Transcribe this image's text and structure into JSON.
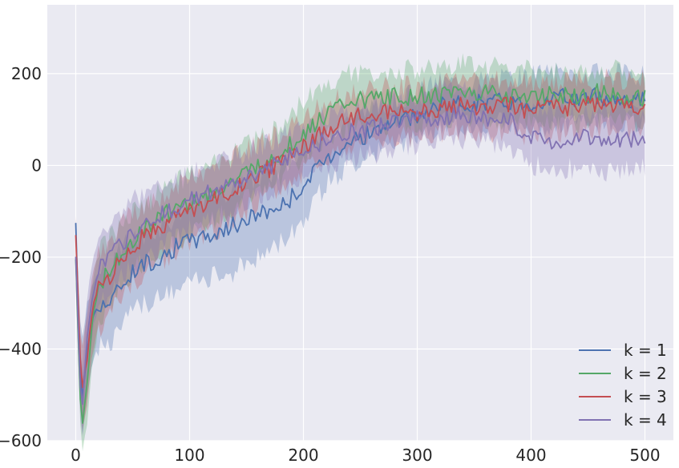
{
  "chart_data": {
    "type": "line",
    "title": "",
    "xlabel": "",
    "ylabel": "",
    "xlim": [
      -25,
      525
    ],
    "ylim": [
      -600,
      350
    ],
    "x_ticks": [
      0,
      100,
      200,
      300,
      400,
      500
    ],
    "x_tick_labels": [
      "0",
      "100",
      "200",
      "300",
      "400",
      "500"
    ],
    "y_ticks": [
      -600,
      -400,
      -200,
      0,
      200
    ],
    "y_tick_labels": [
      "−600",
      "−400",
      "−200",
      "0",
      "200"
    ],
    "grid": true,
    "legend_position": "lower-right",
    "x": [
      0,
      5,
      10,
      15,
      20,
      30,
      40,
      50,
      60,
      70,
      80,
      90,
      100,
      120,
      140,
      160,
      180,
      200,
      220,
      240,
      260,
      280,
      300,
      320,
      340,
      360,
      380,
      400,
      420,
      440,
      460,
      480,
      500
    ],
    "series": [
      {
        "name": "k = 1",
        "color": "#4c72b0",
        "band_alpha": 0.3,
        "mean": [
          -130,
          -530,
          -400,
          -330,
          -300,
          -300,
          -260,
          -230,
          -215,
          -205,
          -190,
          -175,
          -165,
          -150,
          -130,
          -105,
          -90,
          -45,
          15,
          55,
          70,
          95,
          105,
          130,
          135,
          140,
          140,
          135,
          150,
          145,
          150,
          145,
          145
        ],
        "lower": [
          -190,
          -600,
          -500,
          -420,
          -400,
          -390,
          -350,
          -320,
          -305,
          -295,
          -280,
          -270,
          -255,
          -245,
          -230,
          -200,
          -165,
          -115,
          -40,
          0,
          25,
          50,
          50,
          80,
          85,
          90,
          95,
          80,
          85,
          95,
          90,
          90,
          90
        ],
        "upper": [
          -110,
          -400,
          -300,
          -260,
          -230,
          -230,
          -180,
          -160,
          -150,
          -140,
          -130,
          -100,
          -90,
          -70,
          -50,
          -25,
          -10,
          30,
          70,
          105,
          120,
          140,
          160,
          185,
          180,
          190,
          190,
          195,
          205,
          200,
          200,
          200,
          195
        ]
      },
      {
        "name": "k = 2",
        "color": "#55a868",
        "band_alpha": 0.3,
        "mean": [
          -200,
          -590,
          -470,
          -330,
          -260,
          -230,
          -190,
          -160,
          -140,
          -120,
          -105,
          -90,
          -80,
          -60,
          -35,
          0,
          25,
          70,
          110,
          140,
          145,
          150,
          150,
          155,
          160,
          160,
          155,
          150,
          155,
          150,
          160,
          150,
          145
        ],
        "lower": [
          -260,
          -640,
          -560,
          -420,
          -360,
          -310,
          -260,
          -230,
          -215,
          -195,
          -180,
          -160,
          -145,
          -120,
          -90,
          -50,
          -25,
          20,
          60,
          80,
          85,
          90,
          95,
          100,
          105,
          105,
          100,
          95,
          100,
          95,
          100,
          95,
          90
        ],
        "upper": [
          -150,
          -500,
          -380,
          -250,
          -180,
          -160,
          -130,
          -100,
          -85,
          -65,
          -50,
          -35,
          -20,
          0,
          30,
          60,
          90,
          140,
          170,
          200,
          205,
          205,
          210,
          215,
          220,
          215,
          210,
          205,
          210,
          205,
          210,
          205,
          205
        ]
      },
      {
        "name": "k = 3",
        "color": "#c44e52",
        "band_alpha": 0.3,
        "mean": [
          -150,
          -500,
          -420,
          -310,
          -270,
          -240,
          -200,
          -175,
          -155,
          -140,
          -125,
          -110,
          -95,
          -75,
          -50,
          -20,
          5,
          40,
          75,
          105,
          115,
          120,
          115,
          120,
          130,
          125,
          130,
          120,
          130,
          125,
          135,
          130,
          130
        ],
        "lower": [
          -210,
          -580,
          -520,
          -400,
          -360,
          -320,
          -280,
          -255,
          -235,
          -215,
          -200,
          -185,
          -170,
          -145,
          -115,
          -80,
          -50,
          -15,
          20,
          45,
          60,
          65,
          60,
          65,
          75,
          70,
          75,
          65,
          70,
          70,
          80,
          75,
          75
        ],
        "upper": [
          -110,
          -420,
          -320,
          -230,
          -190,
          -170,
          -130,
          -105,
          -90,
          -75,
          -60,
          -40,
          -25,
          -5,
          20,
          45,
          70,
          100,
          135,
          160,
          170,
          175,
          170,
          175,
          185,
          180,
          185,
          175,
          185,
          185,
          190,
          185,
          185
        ]
      },
      {
        "name": "k = 4",
        "color": "#8172b2",
        "band_alpha": 0.3,
        "mean": [
          -200,
          -550,
          -380,
          -280,
          -230,
          -200,
          -170,
          -145,
          -130,
          -115,
          -100,
          -90,
          -75,
          -60,
          -40,
          -15,
          5,
          35,
          55,
          70,
          80,
          90,
          100,
          105,
          110,
          105,
          100,
          60,
          55,
          60,
          55,
          55,
          60
        ],
        "lower": [
          -270,
          -620,
          -470,
          -360,
          -310,
          -280,
          -245,
          -220,
          -200,
          -185,
          -170,
          -155,
          -140,
          -120,
          -95,
          -70,
          -50,
          -25,
          0,
          15,
          25,
          35,
          45,
          50,
          55,
          50,
          45,
          0,
          -10,
          -5,
          -10,
          -15,
          -5
        ],
        "upper": [
          -140,
          -470,
          -290,
          -200,
          -160,
          -130,
          -100,
          -75,
          -60,
          -50,
          -35,
          -25,
          -15,
          0,
          20,
          40,
          60,
          90,
          110,
          125,
          135,
          145,
          155,
          160,
          165,
          160,
          155,
          125,
          120,
          120,
          115,
          115,
          120
        ]
      }
    ]
  }
}
